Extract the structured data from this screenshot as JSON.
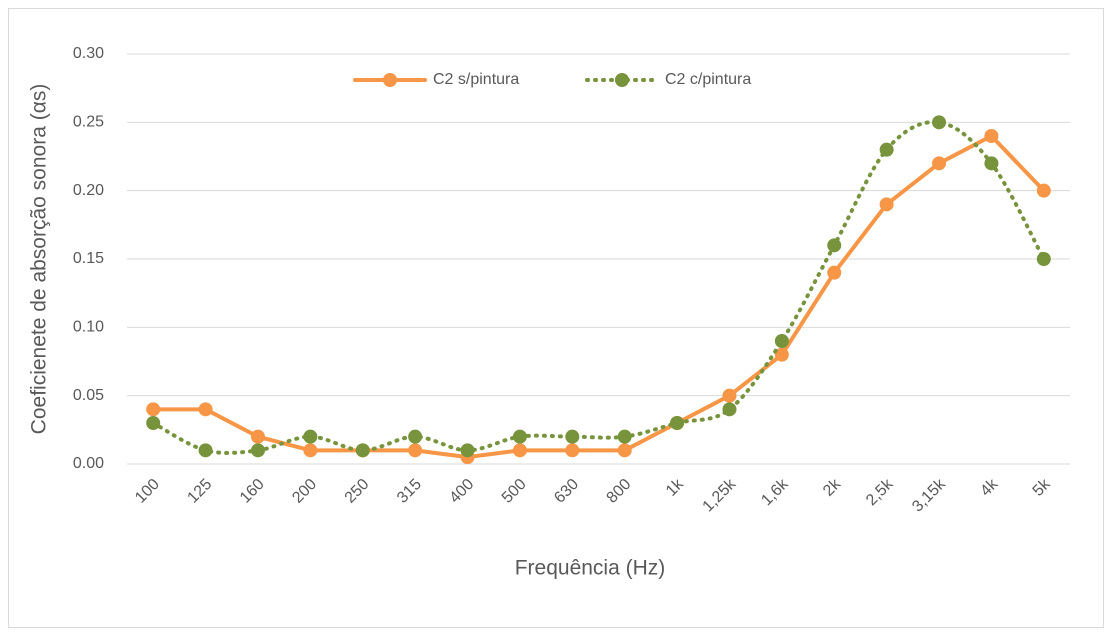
{
  "chart_data": {
    "type": "line",
    "x_label": "Frequência (Hz)",
    "y_label": "Coeficienete de absorção sonora (αs)",
    "categories": [
      "100",
      "125",
      "160",
      "200",
      "250",
      "315",
      "400",
      "500",
      "630",
      "800",
      "1k",
      "1,25k",
      "1,6k",
      "2k",
      "2,5k",
      "3,15k",
      "4k",
      "5k"
    ],
    "series": [
      {
        "name": "C2 s/pintura",
        "color": "#f79646",
        "style": "solid",
        "smooth": false,
        "values": [
          0.04,
          0.04,
          0.02,
          0.01,
          0.01,
          0.01,
          0.005,
          0.01,
          0.01,
          0.01,
          0.03,
          0.05,
          0.08,
          0.14,
          0.19,
          0.22,
          0.24,
          0.2
        ]
      },
      {
        "name": "C2 c/pintura",
        "color": "#77933c",
        "style": "dotted",
        "smooth": true,
        "values": [
          0.03,
          0.01,
          0.01,
          0.02,
          0.01,
          0.02,
          0.01,
          0.02,
          0.02,
          0.02,
          0.03,
          0.04,
          0.09,
          0.16,
          0.23,
          0.25,
          0.22,
          0.15
        ]
      }
    ],
    "ylim": [
      0,
      0.3
    ],
    "yticks": [
      {
        "value": 0,
        "label": "0.00"
      },
      {
        "value": 0.05,
        "label": "0.05"
      },
      {
        "value": 0.1,
        "label": "0.10"
      },
      {
        "value": 0.15,
        "label": "0.15"
      },
      {
        "value": 0.2,
        "label": "0.20"
      },
      {
        "value": 0.25,
        "label": "0.25"
      },
      {
        "value": 0.3,
        "label": "0.30"
      }
    ],
    "grid": true,
    "legend": "top"
  }
}
